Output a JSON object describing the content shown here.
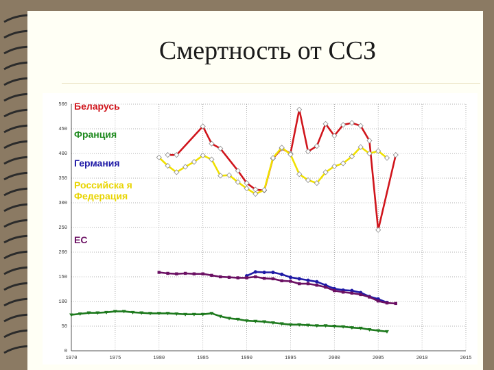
{
  "title": "Смертность от ССЗ",
  "colors": {
    "background": "#8b7a63",
    "paper": "#fffff5",
    "belarus": "#d0151c",
    "france": "#f0e000",
    "germany": "#1f1aa6",
    "russia": "#e8d400",
    "eu": "#6b1063",
    "green_series": "#1e7a1e"
  },
  "chart_data": {
    "type": "line",
    "title": "",
    "xlabel": "",
    "ylabel": "",
    "xlim": [
      1970,
      2015
    ],
    "ylim": [
      0,
      500
    ],
    "x_ticks": [
      "1970",
      "1975",
      "1980",
      "1985",
      "1990",
      "1995",
      "2000",
      "2005",
      "2010",
      "2015"
    ],
    "y_ticks": [
      "0",
      "50",
      "100",
      "150",
      "200",
      "250",
      "300",
      "350",
      "400",
      "450",
      "500"
    ],
    "grid": true,
    "legend_position": "top-left",
    "legend": [
      "Беларусь",
      "Франция",
      "Германия",
      "Российска я Федерация",
      "ЕС"
    ],
    "series": [
      {
        "name": "Беларусь",
        "color": "#d0151c",
        "marker": "diamond",
        "x": [
          1981,
          1982,
          1985,
          1986,
          1987,
          1989,
          1990,
          1991,
          1992,
          1993,
          1994,
          1995,
          1996,
          1997,
          1998,
          1999,
          2000,
          2001,
          2002,
          2003,
          2004,
          2005,
          2007
        ],
        "y": [
          397,
          397,
          455,
          420,
          410,
          365,
          340,
          327,
          325,
          390,
          410,
          400,
          489,
          404,
          415,
          460,
          436,
          458,
          462,
          456,
          426,
          245,
          397
        ]
      },
      {
        "name": "Франция",
        "color": "#f0e000",
        "marker": "diamond",
        "x": [
          1980,
          1981,
          1982,
          1983,
          1984,
          1985,
          1986,
          1987,
          1988,
          1989,
          1990,
          1991,
          1992,
          1993,
          1994,
          1995,
          1996,
          1997,
          1998,
          1999,
          2000,
          2001,
          2002,
          2003,
          2004,
          2005,
          2006
        ],
        "y": [
          392,
          375,
          362,
          373,
          383,
          396,
          388,
          355,
          356,
          342,
          329,
          318,
          326,
          391,
          412,
          398,
          358,
          346,
          340,
          362,
          374,
          380,
          394,
          413,
          400,
          405,
          391
        ]
      },
      {
        "name": "Германия",
        "color": "#1f1aa6",
        "marker": "circle",
        "x": [
          1990,
          1991,
          1992,
          1993,
          1994,
          1995,
          1996,
          1997,
          1998,
          1999,
          2000,
          2001,
          2002,
          2003,
          2004,
          2005,
          2006
        ],
        "y": [
          152,
          160,
          159,
          159,
          155,
          149,
          146,
          143,
          140,
          133,
          126,
          123,
          122,
          118,
          110,
          105,
          98
        ]
      },
      {
        "name": "ЕС",
        "color": "#6b1063",
        "marker": "square",
        "x": [
          1980,
          1981,
          1982,
          1983,
          1984,
          1985,
          1986,
          1987,
          1988,
          1989,
          1990,
          1991,
          1992,
          1993,
          1994,
          1995,
          1996,
          1997,
          1998,
          1999,
          2000,
          2001,
          2002,
          2003,
          2004,
          2005,
          2006,
          2007
        ],
        "y": [
          159,
          157,
          156,
          157,
          156,
          156,
          153,
          150,
          149,
          148,
          148,
          150,
          147,
          146,
          142,
          141,
          136,
          136,
          133,
          129,
          122,
          119,
          117,
          114,
          109,
          101,
          97,
          96
        ]
      },
      {
        "name": "",
        "color": "#1e7a1e",
        "marker": "triangle",
        "x": [
          1970,
          1971,
          1972,
          1973,
          1974,
          1975,
          1976,
          1977,
          1978,
          1979,
          1980,
          1981,
          1982,
          1983,
          1984,
          1985,
          1986,
          1987,
          1988,
          1989,
          1990,
          1991,
          1992,
          1993,
          1994,
          1995,
          1996,
          1997,
          1998,
          1999,
          2000,
          2001,
          2002,
          2003,
          2004,
          2005,
          2006
        ],
        "y": [
          73,
          75,
          77,
          77,
          78,
          80,
          80,
          78,
          77,
          76,
          76,
          76,
          75,
          74,
          74,
          74,
          76,
          70,
          66,
          64,
          61,
          60,
          59,
          57,
          55,
          53,
          53,
          52,
          51,
          51,
          50,
          49,
          47,
          46,
          43,
          41,
          39
        ]
      }
    ]
  }
}
